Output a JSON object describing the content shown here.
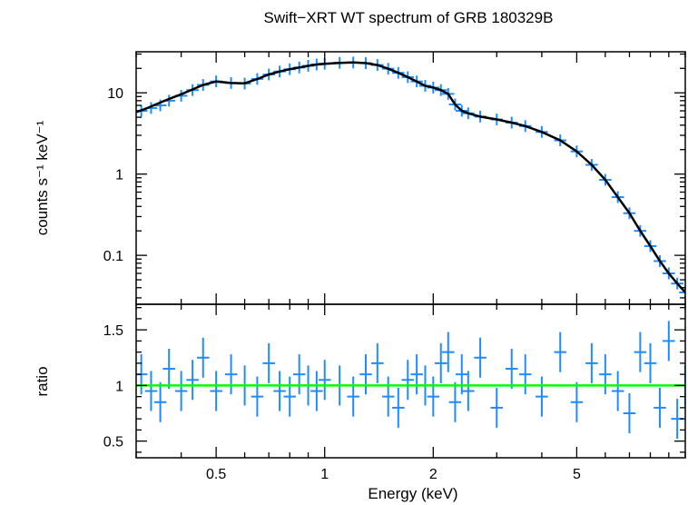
{
  "chart_data": {
    "type": "scatter",
    "title": "Swift−XRT WT spectrum of GRB 180329B",
    "xlabel": "Energy (keV)",
    "xscale": "log",
    "xlim": [
      0.3,
      10
    ],
    "x_tick_labels": [
      "0.5",
      "1",
      "2",
      "5"
    ],
    "x_ticks": [
      0.5,
      1,
      2,
      5
    ],
    "panels": [
      {
        "ylabel": "counts s⁻¹ keV⁻¹",
        "yscale": "log",
        "ylim": [
          0.025,
          32
        ],
        "y_ticks": [
          0.1,
          1,
          10
        ],
        "y_tick_labels": [
          "0.1",
          "1",
          "10"
        ],
        "series": [
          {
            "kind": "data",
            "color": "#1e8cff",
            "x": [
              0.31,
              0.33,
              0.35,
              0.37,
              0.4,
              0.43,
              0.46,
              0.5,
              0.55,
              0.6,
              0.65,
              0.7,
              0.75,
              0.8,
              0.85,
              0.9,
              0.95,
              1.0,
              1.1,
              1.2,
              1.3,
              1.4,
              1.5,
              1.6,
              1.7,
              1.8,
              1.9,
              2.0,
              2.1,
              2.2,
              2.3,
              2.4,
              2.5,
              2.7,
              3.0,
              3.3,
              3.6,
              4.0,
              4.5,
              5.0,
              5.5,
              6.0,
              6.5,
              7.0,
              7.5,
              8.0,
              8.5,
              9.0,
              9.5,
              10.0
            ],
            "y": [
              6.0,
              6.5,
              7.0,
              8.0,
              9.2,
              10.8,
              12.5,
              13.8,
              13.2,
              13.0,
              14.8,
              16.8,
              18.3,
              19.5,
              20.5,
              21.5,
              22.3,
              22.8,
              23.4,
              23.6,
              23.2,
              22.0,
              19.8,
              17.6,
              15.6,
              13.8,
              12.2,
              11.6,
              10.8,
              9.7,
              7.2,
              6.0,
              5.6,
              5.1,
              4.7,
              4.3,
              3.9,
              3.3,
              2.6,
              1.9,
              1.3,
              0.85,
              0.52,
              0.33,
              0.2,
              0.13,
              0.085,
              0.06,
              0.045,
              0.035
            ]
          },
          {
            "kind": "model",
            "color": "#000000",
            "x": [
              0.3,
              0.32,
              0.34,
              0.36,
              0.38,
              0.4,
              0.43,
              0.46,
              0.5,
              0.55,
              0.6,
              0.65,
              0.7,
              0.75,
              0.8,
              0.85,
              0.9,
              0.95,
              1.0,
              1.1,
              1.2,
              1.3,
              1.4,
              1.5,
              1.6,
              1.7,
              1.8,
              1.9,
              2.0,
              2.1,
              2.2,
              2.3,
              2.4,
              2.5,
              2.7,
              3.0,
              3.3,
              3.6,
              4.0,
              4.5,
              5.0,
              5.5,
              6.0,
              6.5,
              7.0,
              7.5,
              8.0,
              8.5,
              9.0,
              9.5,
              10.0
            ],
            "y": [
              5.8,
              6.4,
              7.2,
              8.0,
              8.8,
              9.6,
              11.0,
              12.5,
              13.8,
              13.2,
              13.1,
              14.8,
              16.8,
              18.3,
              19.5,
              20.5,
              21.5,
              22.3,
              22.8,
              23.4,
              23.6,
              23.2,
              22.0,
              19.8,
              17.6,
              15.6,
              13.8,
              12.2,
              11.6,
              10.8,
              9.7,
              7.2,
              6.0,
              5.6,
              5.1,
              4.7,
              4.3,
              3.9,
              3.3,
              2.6,
              1.9,
              1.3,
              0.85,
              0.52,
              0.33,
              0.2,
              0.13,
              0.085,
              0.06,
              0.045,
              0.035
            ]
          }
        ]
      },
      {
        "ylabel": "ratio",
        "yscale": "linear",
        "ylim": [
          0.35,
          1.73
        ],
        "y_ticks": [
          0.5,
          1,
          1.5
        ],
        "y_tick_labels": [
          "0.5",
          "1",
          "1.5"
        ],
        "series": [
          {
            "kind": "reference",
            "color": "#00ff00",
            "y": 1
          },
          {
            "kind": "data",
            "color": "#1e8cff",
            "x": [
              0.31,
              0.33,
              0.35,
              0.37,
              0.4,
              0.43,
              0.46,
              0.5,
              0.55,
              0.6,
              0.65,
              0.7,
              0.75,
              0.8,
              0.85,
              0.9,
              0.95,
              1.0,
              1.1,
              1.2,
              1.3,
              1.4,
              1.5,
              1.6,
              1.7,
              1.8,
              1.9,
              2.0,
              2.1,
              2.2,
              2.3,
              2.4,
              2.5,
              2.7,
              3.0,
              3.3,
              3.6,
              4.0,
              4.5,
              5.0,
              5.5,
              6.0,
              6.5,
              7.0,
              7.5,
              8.0,
              8.5,
              9.0,
              9.5,
              10.0
            ],
            "y": [
              1.1,
              0.95,
              0.85,
              1.15,
              0.95,
              1.05,
              1.25,
              0.95,
              1.1,
              1.0,
              0.9,
              1.2,
              0.95,
              0.9,
              1.1,
              1.0,
              0.95,
              1.05,
              1.0,
              0.9,
              1.1,
              1.2,
              0.9,
              0.8,
              1.05,
              1.1,
              1.0,
              0.9,
              1.2,
              1.3,
              0.85,
              1.1,
              0.95,
              1.25,
              0.8,
              1.15,
              1.1,
              0.9,
              1.3,
              0.85,
              1.2,
              1.1,
              0.95,
              0.75,
              1.3,
              1.2,
              0.8,
              1.4,
              0.7,
              1.0
            ]
          }
        ]
      }
    ]
  }
}
